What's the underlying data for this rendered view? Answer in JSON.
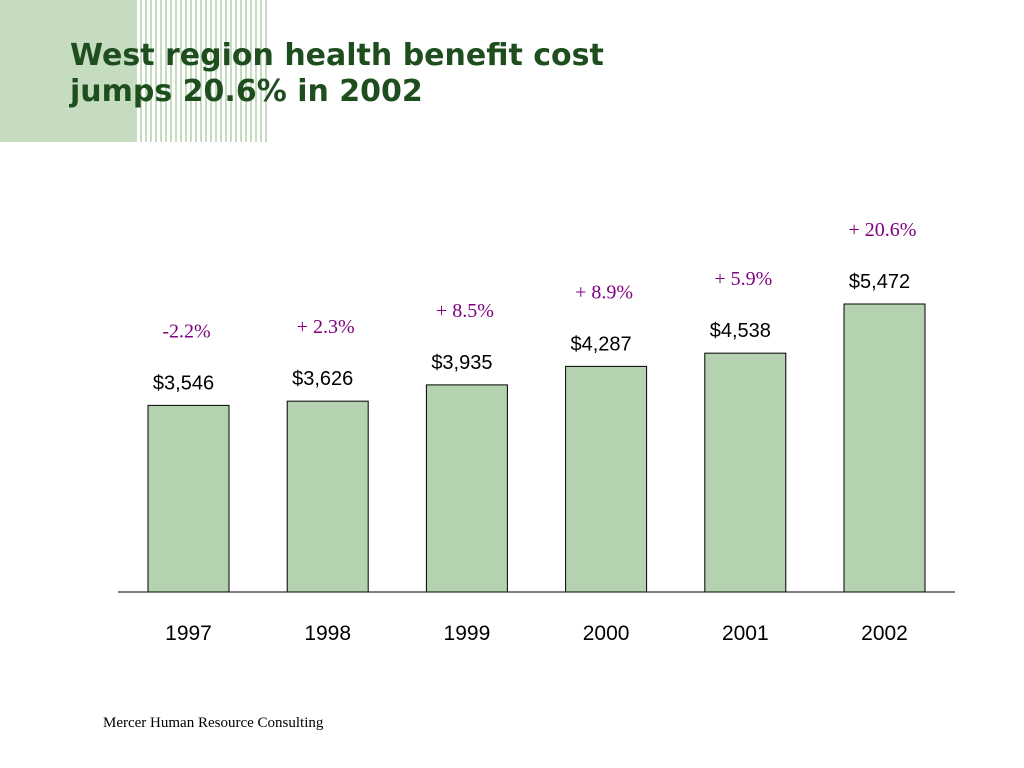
{
  "slide": {
    "title_line1": "West region health benefit cost",
    "title_line2": "jumps 20.6% in 2002",
    "footer": "Mercer Human Resource Consulting"
  },
  "chart_data": {
    "type": "bar",
    "title": "West region health benefit cost jumps 20.6% in 2002",
    "categories": [
      "1997",
      "1998",
      "1999",
      "2000",
      "2001",
      "2002"
    ],
    "values": [
      3546,
      3626,
      3935,
      4287,
      4538,
      5472
    ],
    "value_labels": [
      "$3,546",
      "$3,626",
      "$3,935",
      "$4,287",
      "$4,538",
      "$5,472"
    ],
    "change_labels": [
      "-2.2%",
      "+ 2.3%",
      "+ 8.5%",
      "+ 8.9%",
      "+ 5.9%",
      "+ 20.6%"
    ],
    "xlabel": "",
    "ylabel": "",
    "ylim": [
      0,
      5472
    ],
    "grid": false,
    "legend": "none",
    "colors": {
      "bar_fill": "#b4d1b0",
      "bar_stroke": "#000000",
      "change_text": "#800080",
      "title": "#1e4d1e",
      "decor": "#c5dcc0"
    }
  }
}
